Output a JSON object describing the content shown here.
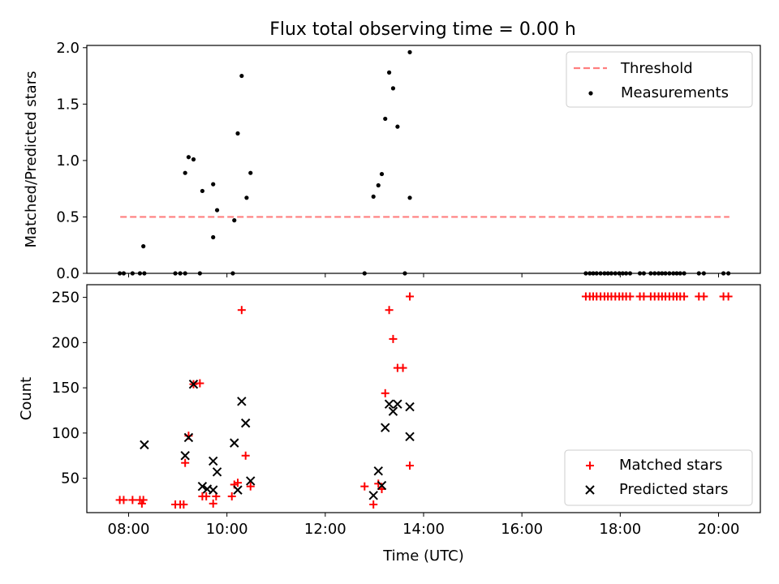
{
  "title": "Flux total observing time = 0.00 h",
  "colors": {
    "threshold": "#ff7f7f",
    "measurements": "#000000",
    "matched": "#ff0000",
    "predicted": "#000000"
  },
  "chart_data": [
    {
      "type": "scatter",
      "title": "Flux total observing time = 0.00 h",
      "ylabel": "Matched/Predicted stars",
      "xlim": [
        7.15,
        20.85
      ],
      "ylim": [
        0,
        2.02
      ],
      "yticks": [
        "0.0",
        "0.5",
        "1.0",
        "1.5",
        "2.0"
      ],
      "legend": {
        "position": "top-right",
        "entries": [
          "Threshold",
          "Measurements"
        ]
      },
      "threshold": {
        "name": "Threshold",
        "y": 0.5,
        "x": [
          7.83,
          20.22
        ]
      },
      "series": [
        {
          "name": "Measurements",
          "x": [
            7.82,
            7.9,
            8.08,
            8.23,
            8.32,
            8.3,
            8.95,
            9.05,
            9.15,
            9.15,
            9.22,
            9.32,
            9.45,
            9.5,
            9.72,
            9.72,
            9.8,
            10.12,
            10.15,
            10.22,
            10.3,
            10.4,
            10.48,
            12.8,
            12.98,
            13.08,
            13.15,
            13.22,
            13.3,
            13.38,
            13.47,
            13.62,
            13.72,
            13.72,
            17.3,
            17.38,
            17.45,
            17.52,
            17.6,
            17.68,
            17.75,
            17.82,
            17.9,
            17.98,
            18.05,
            18.12,
            18.2,
            18.4,
            18.48,
            18.62,
            18.7,
            18.78,
            18.85,
            18.92,
            19.0,
            19.08,
            19.15,
            19.22,
            19.3,
            19.6,
            19.7,
            20.1,
            20.2
          ],
          "y": [
            0,
            0,
            0,
            0,
            0,
            0.24,
            0,
            0,
            0,
            0.89,
            1.03,
            1.01,
            0,
            0.73,
            0.79,
            0.32,
            0.56,
            0,
            0.47,
            1.24,
            1.75,
            0.67,
            0.89,
            0,
            0.68,
            0.78,
            0.88,
            1.37,
            1.78,
            1.64,
            1.3,
            0,
            1.96,
            0.67,
            0,
            0,
            0,
            0,
            0,
            0,
            0,
            0,
            0,
            0,
            0,
            0,
            0,
            0,
            0,
            0,
            0,
            0,
            0,
            0,
            0,
            0,
            0,
            0,
            0,
            0,
            0,
            0,
            0
          ]
        }
      ]
    },
    {
      "type": "scatter",
      "xlabel": "Time (UTC)",
      "ylabel": "Count",
      "xlim": [
        7.15,
        20.85
      ],
      "ylim": [
        12,
        264
      ],
      "xticks": [
        "08:00",
        "10:00",
        "12:00",
        "14:00",
        "16:00",
        "18:00",
        "20:00"
      ],
      "yticks": [
        "50",
        "100",
        "150",
        "200",
        "250"
      ],
      "legend": {
        "position": "bottom-right",
        "entries": [
          "Matched stars",
          "Predicted stars"
        ]
      },
      "series": [
        {
          "name": "Matched stars",
          "marker": "plus",
          "x": [
            7.82,
            7.9,
            8.08,
            8.23,
            8.27,
            8.3,
            8.95,
            9.05,
            9.12,
            9.15,
            9.22,
            9.32,
            9.45,
            9.5,
            9.58,
            9.72,
            9.78,
            10.1,
            10.15,
            10.22,
            10.3,
            10.38,
            10.48,
            12.8,
            12.98,
            13.08,
            13.15,
            13.22,
            13.3,
            13.38,
            13.47,
            13.58,
            13.72,
            13.72,
            17.3,
            17.38,
            17.45,
            17.52,
            17.6,
            17.68,
            17.75,
            17.82,
            17.9,
            17.98,
            18.05,
            18.12,
            18.2,
            18.4,
            18.48,
            18.62,
            18.7,
            18.78,
            18.85,
            18.92,
            19.0,
            19.08,
            19.15,
            19.22,
            19.3,
            19.6,
            19.7,
            20.1,
            20.2
          ],
          "y": [
            26,
            26,
            26,
            26,
            22,
            26,
            21,
            21,
            21,
            67,
            97,
            154,
            155,
            30,
            30,
            22,
            30,
            30,
            43,
            45,
            236,
            75,
            41,
            41,
            21,
            44,
            38,
            144,
            236,
            204,
            172,
            172,
            251,
            64,
            251,
            251,
            251,
            251,
            251,
            251,
            251,
            251,
            251,
            251,
            251,
            251,
            251,
            251,
            251,
            251,
            251,
            251,
            251,
            251,
            251,
            251,
            251,
            251,
            251,
            251,
            251,
            251,
            251
          ]
        },
        {
          "name": "Predicted stars",
          "marker": "x",
          "x": [
            8.32,
            9.15,
            9.22,
            9.32,
            9.5,
            9.6,
            9.72,
            9.72,
            9.8,
            10.15,
            10.22,
            10.3,
            10.38,
            10.48,
            12.98,
            13.08,
            13.15,
            13.22,
            13.3,
            13.38,
            13.47,
            13.72,
            13.72
          ],
          "y": [
            87,
            75,
            95,
            154,
            41,
            38,
            69,
            37,
            57,
            89,
            37,
            135,
            111,
            47,
            31,
            58,
            42,
            106,
            132,
            124,
            132,
            96,
            129
          ]
        }
      ]
    }
  ]
}
